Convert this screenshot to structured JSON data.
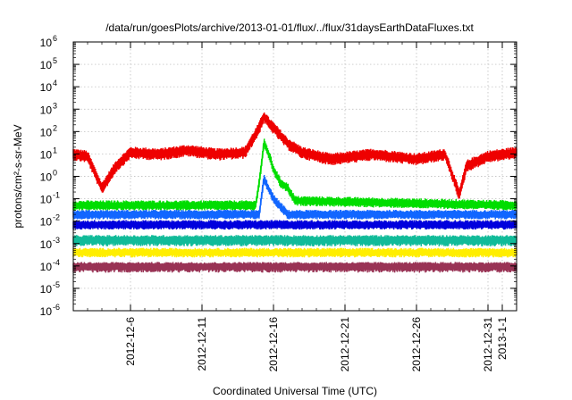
{
  "chart_data": {
    "type": "line",
    "title": "/data/run/goesPlots/archive/2013-01-01/flux/../flux/31daysEarthDataFluxes.txt",
    "xlabel": "Coordinated Universal Time (UTC)",
    "ylabel": "protons/cm²-s-sr-MeV",
    "y_scale": "log",
    "ylim": [
      1e-06,
      1000000.0
    ],
    "y_ticks": [
      {
        "base": "10",
        "exp": "-6"
      },
      {
        "base": "10",
        "exp": "-5"
      },
      {
        "base": "10",
        "exp": "-4"
      },
      {
        "base": "10",
        "exp": "-3"
      },
      {
        "base": "10",
        "exp": "-2"
      },
      {
        "base": "10",
        "exp": "-1"
      },
      {
        "base": "10",
        "exp": "0"
      },
      {
        "base": "10",
        "exp": "1"
      },
      {
        "base": "10",
        "exp": "2"
      },
      {
        "base": "10",
        "exp": "3"
      },
      {
        "base": "10",
        "exp": "4"
      },
      {
        "base": "10",
        "exp": "5"
      },
      {
        "base": "10",
        "exp": "6"
      }
    ],
    "xlim": [
      "2012-12-02",
      "2013-01-02"
    ],
    "x_ticks": [
      "2012-12-6",
      "2012-12-11",
      "2012-12-16",
      "2012-12-21",
      "2012-12-26",
      "2012-12-31",
      "2013-1-1"
    ],
    "x_tick_dates": [
      "2012-12-06",
      "2012-12-11",
      "2012-12-16",
      "2012-12-21",
      "2012-12-26",
      "2012-12-31",
      "2013-01-01"
    ],
    "grid": true,
    "legend": "none",
    "series": [
      {
        "color": "#ee0000",
        "baseline": 8,
        "noise_low": 0.5,
        "noise_high": 1.8,
        "points": [
          [
            "2012-12-02",
            10
          ],
          [
            "2012-12-03",
            8
          ],
          [
            "2012-12-04",
            0.3
          ],
          [
            "2012-12-05",
            3
          ],
          [
            "2012-12-06",
            12
          ],
          [
            "2012-12-08",
            10
          ],
          [
            "2012-12-10",
            15
          ],
          [
            "2012-12-12",
            10
          ],
          [
            "2012-12-14",
            12
          ],
          [
            "2012-12-15",
            150
          ],
          [
            "2012-12-15 08:00",
            500
          ],
          [
            "2012-12-15 16:00",
            250
          ],
          [
            "2012-12-16",
            150
          ],
          [
            "2012-12-17",
            30
          ],
          [
            "2012-12-18",
            12
          ],
          [
            "2012-12-20",
            6
          ],
          [
            "2012-12-23",
            10
          ],
          [
            "2012-12-26",
            6
          ],
          [
            "2012-12-28",
            10
          ],
          [
            "2012-12-29",
            0.15
          ],
          [
            "2012-12-29 12:00",
            3
          ],
          [
            "2012-12-31",
            8
          ],
          [
            "2013-01-02",
            12
          ]
        ]
      },
      {
        "color": "#00dd00",
        "baseline": 0.05,
        "noise_low": 0.6,
        "noise_high": 1.7,
        "points": [
          [
            "2012-12-02",
            0.05
          ],
          [
            "2012-12-14 18:00",
            0.05
          ],
          [
            "2012-12-15",
            0.5
          ],
          [
            "2012-12-15 08:00",
            30
          ],
          [
            "2012-12-15 16:00",
            10
          ],
          [
            "2012-12-16",
            2
          ],
          [
            "2012-12-16 12:00",
            0.5
          ],
          [
            "2012-12-17",
            0.3
          ],
          [
            "2012-12-17 12:00",
            0.08
          ],
          [
            "2013-01-02",
            0.05
          ]
        ]
      },
      {
        "color": "#1166ff",
        "baseline": 0.02,
        "noise_low": 0.6,
        "noise_high": 1.6,
        "points": [
          [
            "2012-12-02",
            0.02
          ],
          [
            "2012-12-15",
            0.02
          ],
          [
            "2012-12-15 08:00",
            0.8
          ],
          [
            "2012-12-16",
            0.1
          ],
          [
            "2012-12-17",
            0.02
          ],
          [
            "2013-01-02",
            0.02
          ]
        ]
      },
      {
        "color": "#0000dd",
        "baseline": 0.007,
        "noise_low": 0.6,
        "noise_high": 1.6,
        "points": [
          [
            "2012-12-02",
            0.007
          ],
          [
            "2013-01-02",
            0.007
          ]
        ]
      },
      {
        "color": "#11bb99",
        "baseline": 0.0015,
        "noise_low": 0.5,
        "noise_high": 1.6,
        "points": [
          [
            "2012-12-02",
            0.0015
          ],
          [
            "2013-01-02",
            0.0015
          ]
        ]
      },
      {
        "color": "#ffee00",
        "baseline": 0.0004,
        "noise_low": 0.6,
        "noise_high": 1.6,
        "points": [
          [
            "2012-12-02",
            0.0004
          ],
          [
            "2013-01-02",
            0.0004
          ]
        ]
      },
      {
        "color": "#993355",
        "baseline": 0.0001,
        "noise_low": 0.5,
        "noise_high": 1.5,
        "points": [
          [
            "2012-12-02",
            0.0001
          ],
          [
            "2013-01-02",
            0.0001
          ]
        ]
      }
    ]
  }
}
